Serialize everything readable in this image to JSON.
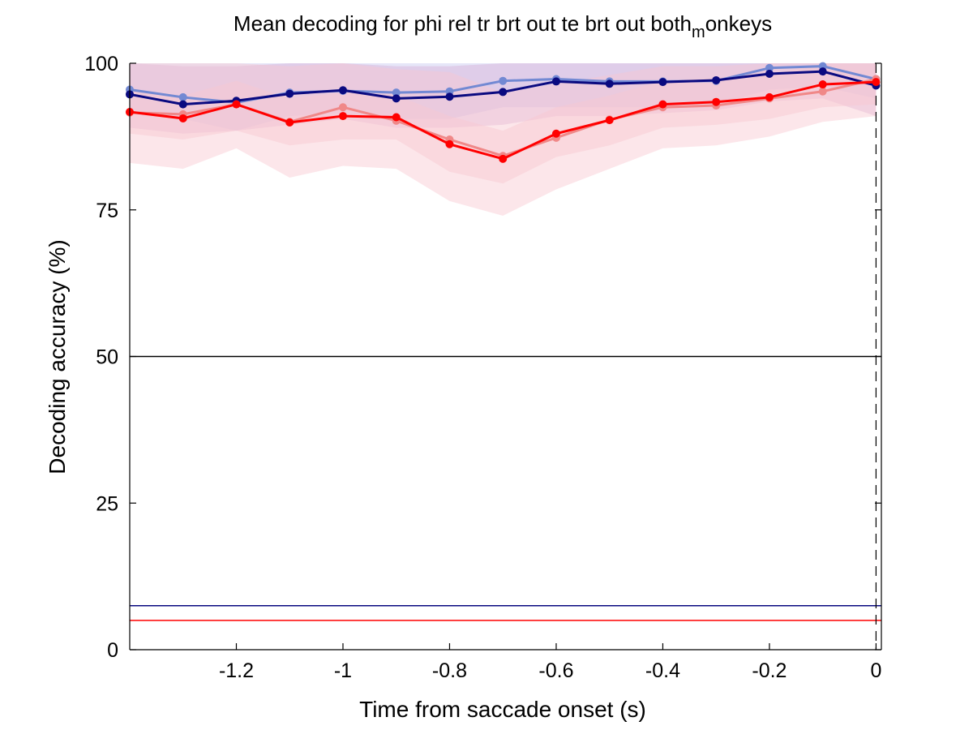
{
  "chart_data": {
    "type": "line",
    "title": "Mean decoding for phi rel tr brt out te brt out  both",
    "title_subscript": "m",
    "title_suffix": "onkeys",
    "xlabel": "Time from saccade onset (s)",
    "ylabel": "Decoding accuracy (%)",
    "xlim": [
      -1.4,
      0.01
    ],
    "ylim": [
      0,
      100
    ],
    "xticks": [
      -1.2,
      -1,
      -0.8,
      -0.6,
      -0.4,
      -0.2,
      0
    ],
    "xtick_labels": [
      "-1.2",
      "-1",
      "-0.8",
      "-0.6",
      "-0.4",
      "-0.2",
      "0"
    ],
    "yticks": [
      0,
      25,
      50,
      75,
      100
    ],
    "ytick_labels": [
      "0",
      "25",
      "50",
      "75",
      "100"
    ],
    "grid": false,
    "x": [
      -1.4,
      -1.3,
      -1.2,
      -1.1,
      -1.0,
      -0.9,
      -0.8,
      -0.7,
      -0.6,
      -0.5,
      -0.4,
      -0.3,
      -0.2,
      -0.1,
      0.0
    ],
    "series": [
      {
        "color": "#7289d3",
        "band_color": "#c8c8f0",
        "values": [
          95.5,
          94.2,
          93.3,
          95.0,
          95.3,
          95.0,
          95.2,
          97.0,
          97.3,
          96.9,
          96.9,
          97.0,
          99.2,
          99.5,
          97.3
        ],
        "band_lower": [
          91.5,
          90.5,
          88.5,
          91.0,
          91.5,
          90.5,
          90.5,
          92.5,
          92.5,
          92.5,
          92.5,
          93.0,
          95.5,
          96.0,
          94.0
        ],
        "band_upper": [
          100,
          100,
          100,
          100,
          100,
          100,
          100,
          100,
          100,
          100,
          100,
          100,
          100,
          100,
          100
        ]
      },
      {
        "color": "#0a0a80",
        "band_color": "#d8b0d8",
        "values": [
          94.7,
          93.0,
          93.6,
          94.8,
          95.4,
          94.0,
          94.3,
          95.1,
          96.9,
          96.5,
          96.8,
          97.1,
          98.2,
          98.6,
          96.2
        ],
        "band_lower": [
          89.0,
          88.0,
          88.5,
          89.5,
          90.5,
          89.0,
          89.0,
          89.5,
          91.0,
          91.0,
          91.5,
          92.0,
          93.5,
          94.0,
          91.0
        ],
        "band_upper": [
          100,
          99.5,
          99.5,
          100,
          100,
          99.5,
          99.5,
          100,
          100,
          100,
          100,
          100,
          100,
          100,
          100
        ]
      },
      {
        "color": "#f08888",
        "band_color": "#f8c8d0",
        "values": [
          91.6,
          91.3,
          93.0,
          90.0,
          92.5,
          90.2,
          87.0,
          84.2,
          87.3,
          90.4,
          92.5,
          92.8,
          94.0,
          95.2,
          97.3
        ],
        "band_lower": [
          83.0,
          82.0,
          85.5,
          80.5,
          82.5,
          82.0,
          76.5,
          74.0,
          78.5,
          82.0,
          85.5,
          86.0,
          87.5,
          90.0,
          91.0
        ],
        "band_upper": [
          100,
          100,
          100,
          99.5,
          100,
          99.0,
          98.5,
          95.0,
          96.5,
          98.0,
          99.5,
          99.5,
          100,
          100,
          100
        ]
      },
      {
        "color": "#ff0000",
        "band_color": "#f8c8d0",
        "values": [
          91.7,
          90.6,
          93.0,
          89.9,
          91.0,
          90.8,
          86.2,
          83.7,
          88.0,
          90.3,
          93.0,
          93.4,
          94.2,
          96.4,
          96.8
        ],
        "band_lower": [
          88.0,
          87.0,
          88.5,
          86.0,
          87.0,
          87.0,
          81.5,
          79.5,
          84.0,
          86.0,
          89.0,
          89.5,
          90.5,
          92.5,
          93.0
        ],
        "band_upper": [
          95.5,
          94.5,
          97.0,
          94.0,
          95.0,
          94.5,
          91.0,
          88.5,
          92.5,
          94.5,
          97.0,
          97.5,
          98.0,
          100,
          100
        ]
      }
    ],
    "reference_lines": [
      {
        "y": 50,
        "color": "#000000"
      },
      {
        "y": 7.5,
        "color": "#0a0a80"
      },
      {
        "y": 5,
        "color": "#ff0000"
      }
    ],
    "vertical_line": {
      "x": 0,
      "style": "dashed",
      "color": "#000000"
    }
  }
}
